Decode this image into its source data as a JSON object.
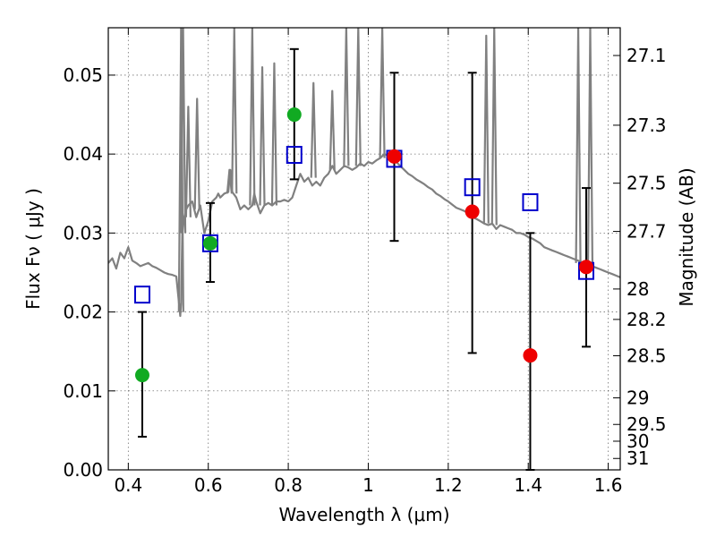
{
  "chart_data": {
    "type": "scatter",
    "title": "",
    "xlabel": "Wavelength  λ (μm)",
    "ylabel": "Flux  Fν  ( μJy )",
    "y2label": "Magnitude (AB)",
    "xlim": [
      0.35,
      1.63
    ],
    "ylim": [
      0.0,
      0.056
    ],
    "grid": true,
    "legend": "none",
    "x_ticks": [
      {
        "value": 0.4,
        "label": "0.4"
      },
      {
        "value": 0.6,
        "label": "0.6"
      },
      {
        "value": 0.8,
        "label": "0.8"
      },
      {
        "value": 1.0,
        "label": "1"
      },
      {
        "value": 1.2,
        "label": "1.2"
      },
      {
        "value": 1.4,
        "label": "1.4"
      },
      {
        "value": 1.6,
        "label": "1.6"
      }
    ],
    "y_ticks": [
      {
        "value": 0.0,
        "label": "0.00"
      },
      {
        "value": 0.01,
        "label": "0.01"
      },
      {
        "value": 0.02,
        "label": "0.02"
      },
      {
        "value": 0.03,
        "label": "0.03"
      },
      {
        "value": 0.04,
        "label": "0.04"
      },
      {
        "value": 0.05,
        "label": "0.05"
      }
    ],
    "mag_ticks": [
      {
        "value": 27.1,
        "label": "27.1"
      },
      {
        "value": 27.3,
        "label": "27.3"
      },
      {
        "value": 27.5,
        "label": "27.5"
      },
      {
        "value": 27.7,
        "label": "27.7"
      },
      {
        "value": 28.0,
        "label": "28"
      },
      {
        "value": 28.2,
        "label": "28.2"
      },
      {
        "value": 28.5,
        "label": "28.5"
      },
      {
        "value": 29.0,
        "label": "29"
      },
      {
        "value": 29.5,
        "label": "29.5"
      },
      {
        "value": 30.0,
        "label": "30"
      },
      {
        "value": 31.0,
        "label": "31"
      }
    ],
    "colors": {
      "model": "#808080",
      "model_points": "#0000cc",
      "observed_optical": "#11aa22",
      "observed_nir": "#ee0000",
      "errorbar": "#000000"
    },
    "model_spectrum": {
      "x": [
        0.35,
        0.36,
        0.37,
        0.38,
        0.39,
        0.4,
        0.41,
        0.42,
        0.43,
        0.44,
        0.45,
        0.46,
        0.47,
        0.48,
        0.49,
        0.5,
        0.51,
        0.52,
        0.525,
        0.53,
        0.532,
        0.535,
        0.54,
        0.545,
        0.55,
        0.56,
        0.57,
        0.58,
        0.59,
        0.6,
        0.61,
        0.62,
        0.625,
        0.63,
        0.64,
        0.65,
        0.655,
        0.66,
        0.67,
        0.68,
        0.69,
        0.7,
        0.71,
        0.715,
        0.72,
        0.73,
        0.74,
        0.75,
        0.76,
        0.77,
        0.78,
        0.79,
        0.8,
        0.81,
        0.82,
        0.83,
        0.84,
        0.85,
        0.86,
        0.87,
        0.88,
        0.89,
        0.9,
        0.91,
        0.92,
        0.93,
        0.94,
        0.95,
        0.96,
        0.97,
        0.98,
        0.99,
        1.0,
        1.01,
        1.02,
        1.03,
        1.04,
        1.05,
        1.06,
        1.07,
        1.08,
        1.09,
        1.1,
        1.11,
        1.12,
        1.13,
        1.14,
        1.15,
        1.16,
        1.17,
        1.18,
        1.19,
        1.2,
        1.21,
        1.22,
        1.23,
        1.24,
        1.25,
        1.26,
        1.27,
        1.28,
        1.29,
        1.3,
        1.31,
        1.32,
        1.33,
        1.34,
        1.35,
        1.36,
        1.37,
        1.38,
        1.39,
        1.4,
        1.41,
        1.42,
        1.43,
        1.44,
        1.45,
        1.46,
        1.47,
        1.48,
        1.49,
        1.5,
        1.51,
        1.52,
        1.53,
        1.54,
        1.55,
        1.56,
        1.57,
        1.58,
        1.59,
        1.6,
        1.61,
        1.62,
        1.63
      ],
      "y": [
        0.0262,
        0.0268,
        0.0255,
        0.0275,
        0.0268,
        0.0282,
        0.0265,
        0.0262,
        0.0258,
        0.026,
        0.0262,
        0.0258,
        0.0256,
        0.0253,
        0.025,
        0.0248,
        0.0247,
        0.0245,
        0.022,
        0.0195,
        0.021,
        0.03,
        0.032,
        0.033,
        0.0335,
        0.034,
        0.032,
        0.0335,
        0.03,
        0.0315,
        0.034,
        0.0345,
        0.035,
        0.0345,
        0.035,
        0.0352,
        0.038,
        0.0352,
        0.0345,
        0.033,
        0.0335,
        0.033,
        0.0335,
        0.035,
        0.034,
        0.0325,
        0.0335,
        0.0338,
        0.0335,
        0.034,
        0.034,
        0.0342,
        0.034,
        0.0345,
        0.036,
        0.0375,
        0.0365,
        0.037,
        0.036,
        0.0365,
        0.036,
        0.037,
        0.0375,
        0.0385,
        0.0375,
        0.038,
        0.0385,
        0.0383,
        0.038,
        0.0383,
        0.0388,
        0.0385,
        0.039,
        0.0388,
        0.0392,
        0.0395,
        0.04,
        0.0398,
        0.0395,
        0.039,
        0.0385,
        0.038,
        0.0375,
        0.0372,
        0.0368,
        0.0365,
        0.0362,
        0.0358,
        0.0355,
        0.035,
        0.0347,
        0.0343,
        0.034,
        0.0336,
        0.0332,
        0.033,
        0.0328,
        0.0325,
        0.032,
        0.0318,
        0.0315,
        0.0312,
        0.031,
        0.0312,
        0.0305,
        0.031,
        0.0308,
        0.0306,
        0.0304,
        0.03,
        0.03,
        0.0298,
        0.0295,
        0.0293,
        0.029,
        0.0287,
        0.0282,
        0.028,
        0.0278,
        0.0276,
        0.0274,
        0.0272,
        0.027,
        0.0268,
        0.0266,
        0.0264,
        0.0262,
        0.026,
        0.0258,
        0.0256,
        0.0254,
        0.0252,
        0.025,
        0.0248,
        0.0246,
        0.0244
      ],
      "spikes": [
        {
          "x": 0.532,
          "base": 0.02,
          "peak": 0.056
        },
        {
          "x": 0.537,
          "base": 0.03,
          "peak": 0.056
        },
        {
          "x": 0.55,
          "base": 0.032,
          "peak": 0.046
        },
        {
          "x": 0.572,
          "base": 0.033,
          "peak": 0.047
        },
        {
          "x": 0.653,
          "base": 0.035,
          "peak": 0.038
        },
        {
          "x": 0.665,
          "base": 0.035,
          "peak": 0.056
        },
        {
          "x": 0.71,
          "base": 0.0335,
          "peak": 0.056
        },
        {
          "x": 0.735,
          "base": 0.0335,
          "peak": 0.051
        },
        {
          "x": 0.765,
          "base": 0.0335,
          "peak": 0.0515
        },
        {
          "x": 0.863,
          "base": 0.037,
          "peak": 0.049
        },
        {
          "x": 0.91,
          "base": 0.038,
          "peak": 0.048
        },
        {
          "x": 0.945,
          "base": 0.0385,
          "peak": 0.056
        },
        {
          "x": 0.975,
          "base": 0.0385,
          "peak": 0.056
        },
        {
          "x": 1.035,
          "base": 0.0395,
          "peak": 0.056
        },
        {
          "x": 1.295,
          "base": 0.0312,
          "peak": 0.055
        },
        {
          "x": 1.315,
          "base": 0.031,
          "peak": 0.056
        },
        {
          "x": 1.525,
          "base": 0.0262,
          "peak": 0.056
        },
        {
          "x": 1.555,
          "base": 0.0255,
          "peak": 0.056
        }
      ]
    },
    "model_points": {
      "x": [
        0.435,
        0.605,
        0.815,
        1.065,
        1.26,
        1.405,
        1.545
      ],
      "y": [
        0.0222,
        0.0287,
        0.0399,
        0.0394,
        0.0358,
        0.0339,
        0.0252
      ]
    },
    "observed": [
      {
        "x": 0.435,
        "y": 0.012,
        "yerr_low": 0.0042,
        "yerr_high": 0.02,
        "band": "optical"
      },
      {
        "x": 0.605,
        "y": 0.0287,
        "yerr_low": 0.0238,
        "yerr_high": 0.0338,
        "band": "optical"
      },
      {
        "x": 0.815,
        "y": 0.045,
        "yerr_low": 0.0368,
        "yerr_high": 0.0533,
        "band": "optical"
      },
      {
        "x": 1.065,
        "y": 0.0397,
        "yerr_low": 0.029,
        "yerr_high": 0.0503,
        "band": "nir"
      },
      {
        "x": 1.26,
        "y": 0.0327,
        "yerr_low": 0.0148,
        "yerr_high": 0.0503,
        "band": "nir"
      },
      {
        "x": 1.405,
        "y": 0.0145,
        "yerr_low": 0.0,
        "yerr_high": 0.03,
        "band": "nir"
      },
      {
        "x": 1.545,
        "y": 0.0257,
        "yerr_low": 0.0156,
        "yerr_high": 0.0357,
        "band": "nir"
      }
    ]
  }
}
